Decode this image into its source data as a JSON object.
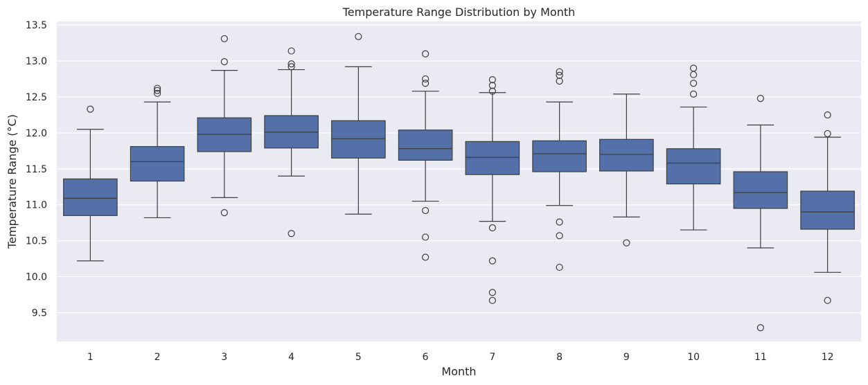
{
  "chart_data": {
    "type": "box",
    "title": "Temperature Range Distribution by Month",
    "xlabel": "Month",
    "ylabel": "Temperature Range (°C)",
    "ylim": [
      9.1,
      13.55
    ],
    "yticks": [
      "9.5",
      "10.0",
      "10.5",
      "11.0",
      "11.5",
      "12.0",
      "12.5",
      "13.0",
      "13.5"
    ],
    "categories": [
      "1",
      "2",
      "3",
      "4",
      "5",
      "6",
      "7",
      "8",
      "9",
      "10",
      "11",
      "12"
    ],
    "grid": true,
    "colors": {
      "box": "#5470a8",
      "line": "#3d3d3d",
      "background": "#eaeaf2",
      "grid": "#ffffff"
    },
    "boxes": [
      {
        "month": "1",
        "whislo": 10.22,
        "q1": 10.85,
        "med": 11.09,
        "q3": 11.36,
        "whishi": 12.05,
        "fliers": [
          12.33
        ]
      },
      {
        "month": "2",
        "whislo": 10.82,
        "q1": 11.33,
        "med": 11.6,
        "q3": 11.81,
        "whishi": 12.43,
        "fliers": [
          12.55,
          12.59,
          12.62
        ]
      },
      {
        "month": "3",
        "whislo": 11.1,
        "q1": 11.74,
        "med": 11.98,
        "q3": 12.21,
        "whishi": 12.87,
        "fliers": [
          10.89,
          12.99,
          13.31
        ]
      },
      {
        "month": "4",
        "whislo": 11.4,
        "q1": 11.79,
        "med": 12.01,
        "q3": 12.24,
        "whishi": 12.88,
        "fliers": [
          10.6,
          12.92,
          12.96,
          13.14
        ]
      },
      {
        "month": "5",
        "whislo": 10.87,
        "q1": 11.65,
        "med": 11.92,
        "q3": 12.17,
        "whishi": 12.92,
        "fliers": [
          13.34
        ]
      },
      {
        "month": "6",
        "whislo": 11.05,
        "q1": 11.62,
        "med": 11.78,
        "q3": 12.04,
        "whishi": 12.58,
        "fliers": [
          10.27,
          10.55,
          10.92,
          12.69,
          12.75,
          13.1
        ]
      },
      {
        "month": "7",
        "whislo": 10.77,
        "q1": 11.42,
        "med": 11.66,
        "q3": 11.88,
        "whishi": 12.56,
        "fliers": [
          9.67,
          9.78,
          10.22,
          10.68,
          12.58,
          12.66,
          12.74
        ]
      },
      {
        "month": "8",
        "whislo": 10.99,
        "q1": 11.46,
        "med": 11.71,
        "q3": 11.89,
        "whishi": 12.43,
        "fliers": [
          10.13,
          10.57,
          10.76,
          12.72,
          12.8,
          12.85
        ]
      },
      {
        "month": "9",
        "whislo": 10.83,
        "q1": 11.47,
        "med": 11.7,
        "q3": 11.91,
        "whishi": 12.54,
        "fliers": [
          10.47
        ]
      },
      {
        "month": "10",
        "whislo": 10.65,
        "q1": 11.29,
        "med": 11.58,
        "q3": 11.78,
        "whishi": 12.36,
        "fliers": [
          12.54,
          12.69,
          12.81,
          12.9
        ]
      },
      {
        "month": "11",
        "whislo": 10.4,
        "q1": 10.95,
        "med": 11.17,
        "q3": 11.46,
        "whishi": 12.11,
        "fliers": [
          9.29,
          12.48
        ]
      },
      {
        "month": "12",
        "whislo": 10.06,
        "q1": 10.66,
        "med": 10.9,
        "q3": 11.19,
        "whishi": 11.94,
        "fliers": [
          9.67,
          11.99,
          12.25
        ]
      }
    ]
  }
}
